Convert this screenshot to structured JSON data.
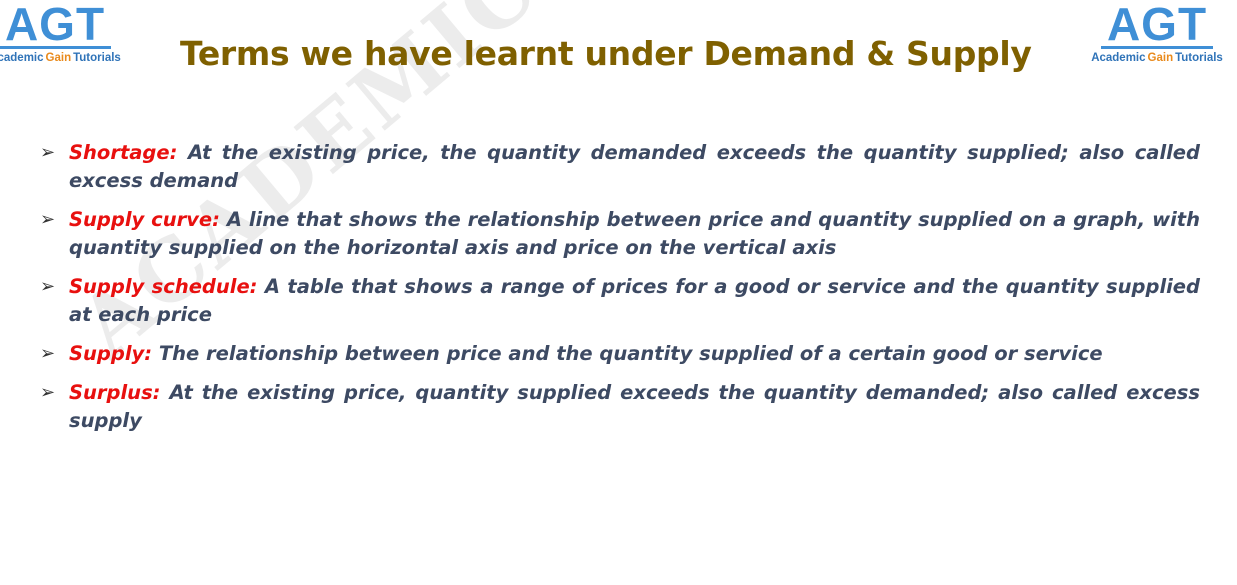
{
  "logo": {
    "mark": "AGT",
    "words": [
      "Academic",
      "Gain",
      "Tutorials"
    ]
  },
  "header": {
    "title": "Terms we have learnt under Demand & Supply"
  },
  "watermark": "ACADEMIC GAIN TUTORIALS",
  "items": [
    {
      "term": "Shortage:",
      "definition": "At the existing price, the quantity demanded exceeds the quantity supplied; also called excess demand"
    },
    {
      "term": "Supply curve:",
      "definition": "A line that shows the relationship between price and quantity supplied on a graph, with quantity supplied on the horizontal axis and price on the vertical axis"
    },
    {
      "term": "Supply schedule:",
      "definition": "A table that shows a range of prices for a good or service and the quantity supplied at each price"
    },
    {
      "term": "Supply:",
      "definition": "The relationship between price and the quantity supplied of a certain good or service"
    },
    {
      "term": "Surplus:",
      "definition": "At the existing price, quantity supplied exceeds the quantity demanded; also called excess supply"
    }
  ]
}
